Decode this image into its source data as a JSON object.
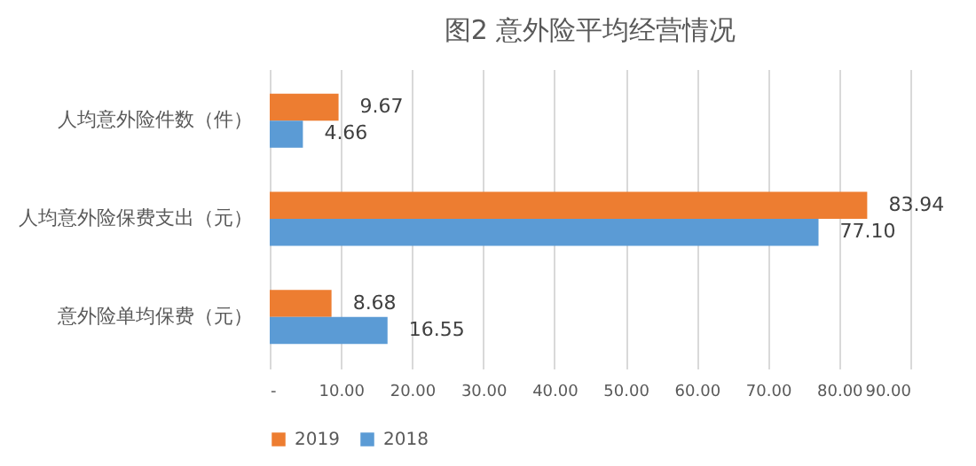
{
  "chart_data": {
    "type": "bar",
    "orientation": "horizontal",
    "title": "图2  意外险平均经营情况",
    "categories": [
      "人均意外险件数（件）",
      "人均意外险保费支出（元）",
      "意外险单均保费（元）"
    ],
    "series": [
      {
        "name": "2019",
        "color": "#ed7d31",
        "values": [
          9.67,
          83.94,
          8.68
        ],
        "value_labels": [
          "9.67",
          "83.94",
          "8.68"
        ]
      },
      {
        "name": "2018",
        "color": "#5b9bd5",
        "values": [
          4.66,
          77.1,
          16.55
        ],
        "value_labels": [
          "4.66",
          "77.10",
          "16.55"
        ]
      }
    ],
    "xlim": [
      0,
      90
    ],
    "xticks": [
      {
        "value": 0,
        "label": "-"
      },
      {
        "value": 10,
        "label": "10.00"
      },
      {
        "value": 20,
        "label": "20.00"
      },
      {
        "value": 30,
        "label": "30.00"
      },
      {
        "value": 40,
        "label": "40.00"
      },
      {
        "value": 50,
        "label": "50.00"
      },
      {
        "value": 60,
        "label": "60.00"
      },
      {
        "value": 70,
        "label": "70.00"
      },
      {
        "value": 80,
        "label": "80.00"
      },
      {
        "value": 90,
        "label": "90.00"
      }
    ],
    "grid": "x",
    "legend": "bottom"
  }
}
